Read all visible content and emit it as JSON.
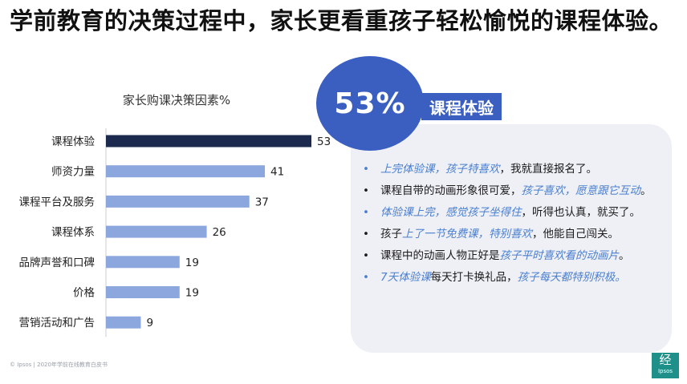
{
  "title": "学前教育的决策过程中，家长更看重孩子轻松愉悦的课程体验。",
  "chart_data": {
    "type": "bar",
    "orientation": "horizontal",
    "title": "家长购课决策因素%",
    "categories": [
      "课程体验",
      "师资力量",
      "课程平台及服务",
      "课程体系",
      "品牌声誉和口碑",
      "价格",
      "营销活动和广告"
    ],
    "values": [
      53,
      41,
      37,
      26,
      19,
      19,
      9
    ],
    "xlim": [
      0,
      53
    ],
    "grid": false,
    "colors": {
      "highlight": "#1b2a4e",
      "default": "#8ba7de"
    }
  },
  "callout": {
    "percent": "53%",
    "label": "课程体验"
  },
  "quotes": [
    [
      {
        "text": "上完体验课，孩子特喜欢",
        "style": "blue"
      },
      {
        "text": "，我就直接报名了。",
        "style": "dark"
      }
    ],
    [
      {
        "text": "课程自带的动画形象很可爱，",
        "style": "dark"
      },
      {
        "text": "孩子喜欢，愿意跟它互动",
        "style": "blue"
      },
      {
        "text": "。",
        "style": "dark"
      }
    ],
    [
      {
        "text": "体验课上完，感觉孩子坐得住",
        "style": "blue"
      },
      {
        "text": "，听得也认真，就买了。",
        "style": "dark"
      }
    ],
    [
      {
        "text": "孩子",
        "style": "dark"
      },
      {
        "text": "上了一节免费课，特别喜欢",
        "style": "blue"
      },
      {
        "text": "，他能自己闯关。",
        "style": "dark"
      }
    ],
    [
      {
        "text": "课程中的动画人物正好是",
        "style": "dark"
      },
      {
        "text": "孩子平时喜欢看的动画片",
        "style": "blue"
      },
      {
        "text": "。",
        "style": "dark"
      }
    ],
    [
      {
        "text": "7天体验课",
        "style": "blue"
      },
      {
        "text": "每天打卡换礼品，",
        "style": "dark"
      },
      {
        "text": "孩子每天都特别积极。",
        "style": "blue"
      }
    ]
  ],
  "quote_bullet_colors": [
    "#4a7fd0",
    "#1a1a1a",
    "#4a7fd0",
    "#1a1a1a",
    "#1a1a1a",
    "#4a7fd0"
  ],
  "footer": "© Ipsos | 2020年学前在线教育白皮书",
  "logo": {
    "top": "经",
    "bottom": "Ipsos"
  }
}
